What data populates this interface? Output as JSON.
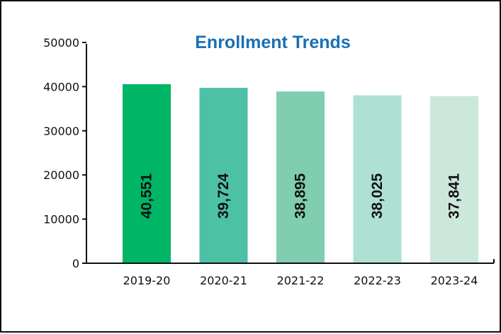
{
  "chart_data": {
    "type": "bar",
    "title": "Enrollment Trends",
    "xlabel": "",
    "ylabel": "",
    "categories": [
      "2019-20",
      "2020-21",
      "2021-22",
      "2022-23",
      "2023-24"
    ],
    "values": [
      40551,
      39724,
      38895,
      38025,
      37841
    ],
    "value_labels": [
      "40,551",
      "39,724",
      "38,895",
      "38,025",
      "37,841"
    ],
    "ylim": [
      0,
      50000
    ],
    "yticks": [
      0,
      10000,
      20000,
      30000,
      40000,
      50000
    ],
    "ytick_labels": [
      "0",
      "10000",
      "20000",
      "30000",
      "40000",
      "50000"
    ],
    "grid": false,
    "legend": "none",
    "value_label_orientation": "vertical",
    "bar_colors": [
      "#00b566",
      "#4cc1a6",
      "#80cdb0",
      "#aee0d4",
      "#cce8dc"
    ],
    "title_color": "#1a6fb5"
  }
}
